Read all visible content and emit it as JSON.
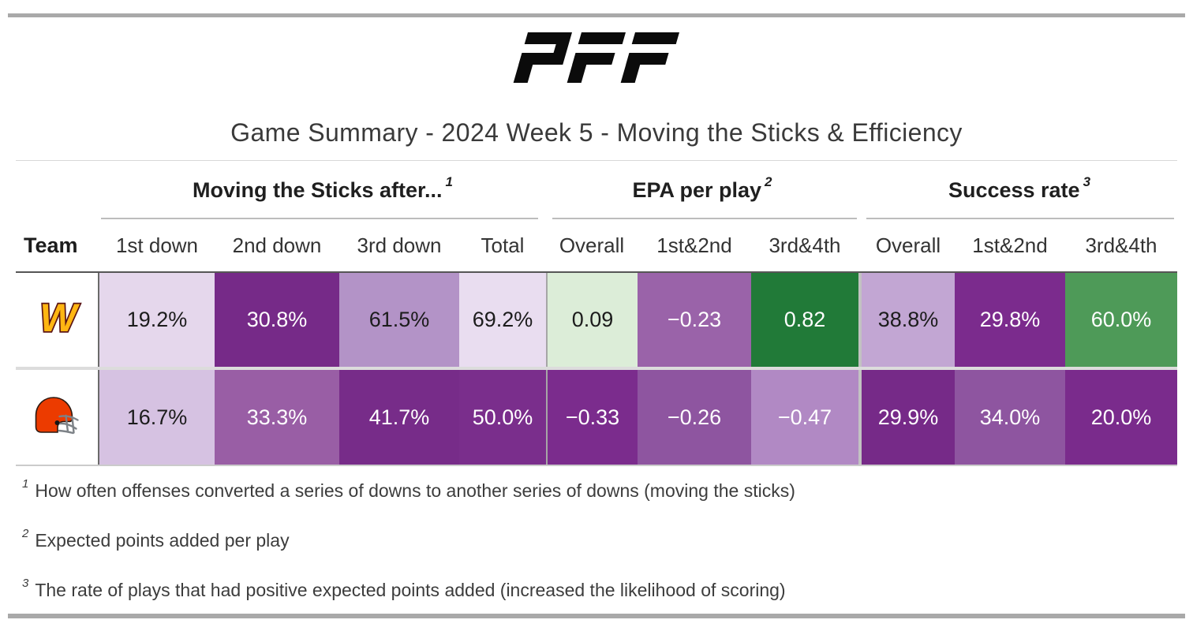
{
  "brand": {
    "name": "PFF"
  },
  "title": "Game Summary - 2024 Week 5 - Moving the Sticks & Efficiency",
  "table": {
    "team_column_header": "Team",
    "groups": [
      {
        "label": "Moving the Sticks after...",
        "footnote_ref": "1",
        "columns": [
          "1st down",
          "2nd down",
          "3rd down",
          "Total"
        ]
      },
      {
        "label": "EPA per play",
        "footnote_ref": "2",
        "columns": [
          "Overall",
          "1st&2nd",
          "3rd&4th"
        ]
      },
      {
        "label": "Success rate",
        "footnote_ref": "3",
        "columns": [
          "Overall",
          "1st&2nd",
          "3rd&4th"
        ]
      }
    ],
    "rows": [
      {
        "team": "Washington Commanders",
        "logo_icon": "commanders-logo",
        "cells": [
          {
            "value": "19.2%",
            "bg": "#e5d7ec",
            "fg": "#1c1c1c"
          },
          {
            "value": "30.8%",
            "bg": "#762a88",
            "fg": "#ffffff"
          },
          {
            "value": "61.5%",
            "bg": "#b393c7",
            "fg": "#1c1c1c"
          },
          {
            "value": "69.2%",
            "bg": "#e9ddf0",
            "fg": "#1c1c1c"
          },
          {
            "value": "0.09",
            "bg": "#dcedd8",
            "fg": "#1c1c1c"
          },
          {
            "value": "−0.23",
            "bg": "#9a63a9",
            "fg": "#ffffff"
          },
          {
            "value": "0.82",
            "bg": "#217a38",
            "fg": "#ffffff"
          },
          {
            "value": "38.8%",
            "bg": "#c2a6d3",
            "fg": "#1c1c1c"
          },
          {
            "value": "29.8%",
            "bg": "#7b2b8d",
            "fg": "#ffffff"
          },
          {
            "value": "60.0%",
            "bg": "#4e9a58",
            "fg": "#ffffff"
          }
        ]
      },
      {
        "team": "Cleveland Browns",
        "logo_icon": "browns-logo",
        "cells": [
          {
            "value": "16.7%",
            "bg": "#d6c2e2",
            "fg": "#1c1c1c"
          },
          {
            "value": "33.3%",
            "bg": "#995ea5",
            "fg": "#ffffff"
          },
          {
            "value": "41.7%",
            "bg": "#772c89",
            "fg": "#ffffff"
          },
          {
            "value": "50.0%",
            "bg": "#7a2e8c",
            "fg": "#ffffff"
          },
          {
            "value": "−0.33",
            "bg": "#7b2c8d",
            "fg": "#ffffff"
          },
          {
            "value": "−0.26",
            "bg": "#8e55a0",
            "fg": "#ffffff"
          },
          {
            "value": "−0.47",
            "bg": "#b189c4",
            "fg": "#ffffff"
          },
          {
            "value": "29.9%",
            "bg": "#762a88",
            "fg": "#ffffff"
          },
          {
            "value": "34.0%",
            "bg": "#8e55a0",
            "fg": "#ffffff"
          },
          {
            "value": "20.0%",
            "bg": "#7a2b8c",
            "fg": "#ffffff"
          }
        ]
      }
    ]
  },
  "footnotes": [
    {
      "sup": "1",
      "text": "How often offenses converted a series of downs to another series of downs (moving the sticks)"
    },
    {
      "sup": "2",
      "text": "Expected points added per play"
    },
    {
      "sup": "3",
      "text": "The rate of plays that had positive expected points added (increased the likelihood of scoring)"
    }
  ],
  "colors": {
    "divider_bar": "#a9a9a9",
    "heat_dark_purple": "#762a88",
    "heat_light_purple": "#e5d7ec",
    "heat_dark_green": "#217a38",
    "heat_light_green": "#dcedd8",
    "commanders_gold": "#ffb612",
    "commanders_burgundy": "#5a1414",
    "browns_orange": "#ec3b00"
  },
  "chart_data": {
    "type": "table",
    "title": "Game Summary - 2024 Week 5 - Moving the Sticks & Efficiency",
    "column_groups": [
      "Moving the Sticks after...",
      "EPA per play",
      "Success rate"
    ],
    "columns": [
      "Team",
      "1st down",
      "2nd down",
      "3rd down",
      "Total",
      "Overall",
      "1st&2nd",
      "3rd&4th",
      "Overall",
      "1st&2nd",
      "3rd&4th"
    ],
    "rows": [
      {
        "team": "Washington Commanders",
        "moving_the_sticks": {
          "after_1st_down": "19.2%",
          "after_2nd_down": "30.8%",
          "after_3rd_down": "61.5%",
          "total": "69.2%"
        },
        "epa_per_play": {
          "overall": 0.09,
          "1st_and_2nd": -0.23,
          "3rd_and_4th": 0.82
        },
        "success_rate": {
          "overall": "38.8%",
          "1st_and_2nd": "29.8%",
          "3rd_and_4th": "60.0%"
        }
      },
      {
        "team": "Cleveland Browns",
        "moving_the_sticks": {
          "after_1st_down": "16.7%",
          "after_2nd_down": "33.3%",
          "after_3rd_down": "41.7%",
          "total": "50.0%"
        },
        "epa_per_play": {
          "overall": -0.33,
          "1st_and_2nd": -0.26,
          "3rd_and_4th": -0.47
        },
        "success_rate": {
          "overall": "29.9%",
          "1st_and_2nd": "34.0%",
          "3rd_and_4th": "20.0%"
        }
      }
    ],
    "legend": "cell shading is a heatmap: dark purple = poor, light = neutral, green = good"
  }
}
